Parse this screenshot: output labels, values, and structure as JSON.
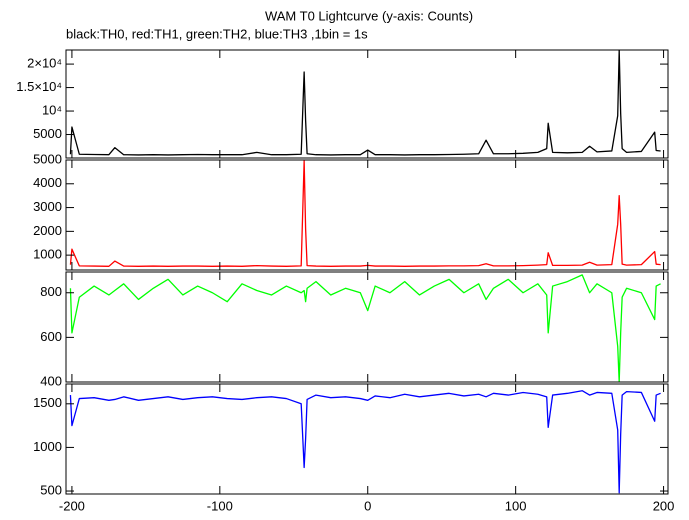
{
  "title": "WAM T0 Lightcurve (y-axis: Counts)",
  "subtitle": "black:TH0, red:TH1, green:TH2, blue:TH3 ,1bin = 1s",
  "chart_data": [
    {
      "type": "line",
      "x": [
        -201,
        -200,
        -195,
        -185,
        -175,
        -171,
        -165,
        -155,
        -145,
        -135,
        -125,
        -115,
        -105,
        -95,
        -85,
        -75,
        -65,
        -55,
        -45,
        -43,
        -42,
        -41,
        -35,
        -25,
        -15,
        -5,
        0,
        5,
        15,
        25,
        35,
        45,
        55,
        65,
        75,
        80,
        85,
        95,
        105,
        115,
        121,
        122,
        125,
        135,
        145,
        150,
        155,
        165,
        169,
        170,
        171,
        172,
        175,
        185,
        194,
        195,
        198
      ],
      "series": [
        {
          "name": "TH0",
          "color": "#000000",
          "values": [
            800,
            6600,
            800,
            750,
            700,
            2200,
            700,
            650,
            700,
            650,
            700,
            750,
            700,
            700,
            700,
            1200,
            700,
            700,
            800,
            18300,
            8000,
            900,
            700,
            650,
            700,
            700,
            1700,
            700,
            700,
            650,
            700,
            700,
            750,
            800,
            900,
            3800,
            900,
            900,
            1000,
            1200,
            2000,
            7400,
            1200,
            1100,
            1200,
            2500,
            1300,
            1500,
            9000,
            23000,
            9500,
            2000,
            1200,
            1400,
            5500,
            1600,
            1500
          ]
        }
      ],
      "xlim": [
        -204,
        203
      ],
      "ylim": [
        0,
        23000
      ],
      "yticks": [
        5000,
        {
          "value": 10000,
          "label": "10⁴"
        },
        {
          "value": 15000,
          "label": "1.5×10⁴"
        },
        {
          "value": 20000,
          "label": "2×10⁴"
        }
      ]
    },
    {
      "type": "line",
      "x": [
        -201,
        -200,
        -195,
        -185,
        -175,
        -171,
        -165,
        -155,
        -145,
        -135,
        -125,
        -115,
        -105,
        -95,
        -85,
        -75,
        -65,
        -55,
        -45,
        -43,
        -42,
        -41,
        -35,
        -25,
        -15,
        -5,
        0,
        5,
        15,
        25,
        35,
        45,
        55,
        65,
        75,
        80,
        85,
        95,
        105,
        115,
        121,
        122,
        125,
        135,
        145,
        150,
        155,
        165,
        169,
        170,
        171,
        172,
        175,
        185,
        194,
        195,
        198
      ],
      "series": [
        {
          "name": "TH1",
          "color": "#ff0000",
          "values": [
            600,
            1250,
            550,
            540,
            530,
            750,
            540,
            530,
            540,
            530,
            540,
            540,
            530,
            540,
            530,
            560,
            540,
            530,
            550,
            4960,
            2100,
            560,
            540,
            530,
            540,
            540,
            570,
            540,
            540,
            530,
            540,
            540,
            550,
            550,
            560,
            640,
            550,
            550,
            560,
            580,
            600,
            1100,
            570,
            570,
            580,
            700,
            580,
            600,
            2300,
            3500,
            2300,
            620,
            580,
            600,
            1150,
            620,
            600
          ]
        }
      ],
      "xlim": [
        -204,
        203
      ],
      "ylim": [
        375,
        5000
      ],
      "yticks": [
        1000,
        2000,
        3000,
        4000,
        5000
      ]
    },
    {
      "type": "line",
      "x": [
        -201,
        -200,
        -195,
        -185,
        -175,
        -171,
        -165,
        -155,
        -145,
        -135,
        -125,
        -115,
        -105,
        -95,
        -85,
        -75,
        -65,
        -55,
        -45,
        -43,
        -42,
        -41,
        -35,
        -25,
        -15,
        -5,
        0,
        5,
        15,
        25,
        35,
        45,
        55,
        65,
        75,
        80,
        85,
        95,
        105,
        115,
        121,
        122,
        125,
        135,
        145,
        150,
        155,
        165,
        169,
        170,
        171,
        172,
        175,
        185,
        194,
        195,
        198
      ],
      "series": [
        {
          "name": "TH2",
          "color": "#00ff00",
          "values": [
            820,
            620,
            780,
            830,
            790,
            810,
            840,
            770,
            820,
            860,
            790,
            830,
            800,
            760,
            840,
            810,
            790,
            830,
            800,
            810,
            760,
            820,
            850,
            790,
            820,
            800,
            720,
            830,
            800,
            850,
            790,
            830,
            860,
            800,
            840,
            770,
            820,
            860,
            800,
            840,
            790,
            620,
            830,
            850,
            880,
            800,
            840,
            800,
            560,
            400,
            620,
            780,
            820,
            800,
            680,
            830,
            840
          ]
        }
      ],
      "xlim": [
        -204,
        203
      ],
      "ylim": [
        400,
        893
      ],
      "yticks": [
        400,
        600,
        800
      ]
    },
    {
      "type": "line",
      "x": [
        -201,
        -200,
        -195,
        -185,
        -175,
        -171,
        -165,
        -155,
        -145,
        -135,
        -125,
        -115,
        -105,
        -95,
        -85,
        -75,
        -65,
        -55,
        -45,
        -43,
        -42,
        -41,
        -35,
        -25,
        -15,
        -5,
        0,
        5,
        15,
        25,
        35,
        45,
        55,
        65,
        75,
        80,
        85,
        95,
        105,
        115,
        121,
        122,
        125,
        135,
        145,
        150,
        155,
        165,
        169,
        170,
        171,
        172,
        175,
        185,
        194,
        195,
        198
      ],
      "series": [
        {
          "name": "TH3",
          "color": "#0000ff",
          "values": [
            1600,
            1250,
            1560,
            1570,
            1540,
            1550,
            1580,
            1540,
            1560,
            1580,
            1550,
            1570,
            1580,
            1560,
            1550,
            1570,
            1580,
            1560,
            1500,
            770,
            1100,
            1550,
            1600,
            1570,
            1580,
            1560,
            1540,
            1590,
            1570,
            1610,
            1580,
            1600,
            1620,
            1590,
            1610,
            1580,
            1620,
            1600,
            1630,
            1610,
            1580,
            1230,
            1600,
            1620,
            1650,
            1600,
            1630,
            1620,
            1200,
            480,
            1150,
            1600,
            1640,
            1630,
            1300,
            1600,
            1620
          ]
        }
      ],
      "xlim": [
        -204,
        203
      ],
      "ylim": [
        466,
        1727
      ],
      "yticks": [
        500,
        1000,
        1500
      ],
      "xticks": [
        -200,
        -100,
        0,
        100,
        200
      ]
    }
  ]
}
